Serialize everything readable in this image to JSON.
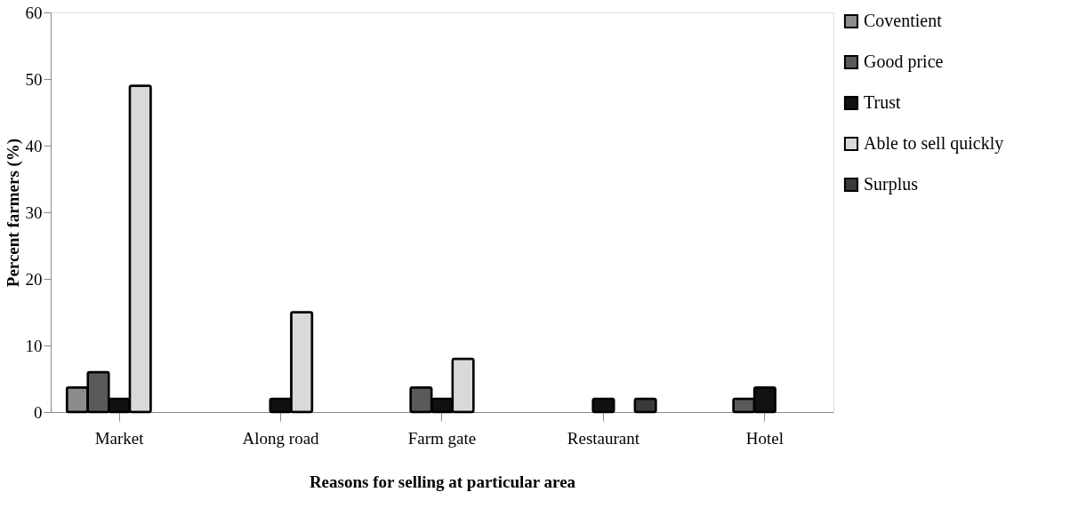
{
  "chart_data": {
    "type": "bar",
    "xlabel": "Reasons for selling  at particular area",
    "ylabel": "Percent farmers (%)",
    "categories": [
      "Market",
      "Along road",
      "Farm gate",
      "Restaurant",
      "Hotel"
    ],
    "series": [
      {
        "name": "Coventient",
        "color": "#8c8c8c",
        "values": [
          3.7,
          null,
          null,
          null,
          null
        ]
      },
      {
        "name": "Good price",
        "color": "#5a5a5a",
        "values": [
          6,
          null,
          3.7,
          null,
          2
        ]
      },
      {
        "name": "Trust",
        "color": "#111111",
        "values": [
          2,
          2,
          2,
          2,
          3.7
        ]
      },
      {
        "name": "Able to sell quickly",
        "color": "#d9d9d9",
        "values": [
          49,
          15,
          8,
          null,
          null
        ]
      },
      {
        "name": "Surplus",
        "color": "#3a3a3a",
        "values": [
          null,
          null,
          null,
          2,
          null
        ]
      }
    ],
    "ylim": [
      0,
      60
    ],
    "yticks": [
      0,
      10,
      20,
      30,
      40,
      50,
      60
    ],
    "grid": false,
    "legend": "right"
  }
}
